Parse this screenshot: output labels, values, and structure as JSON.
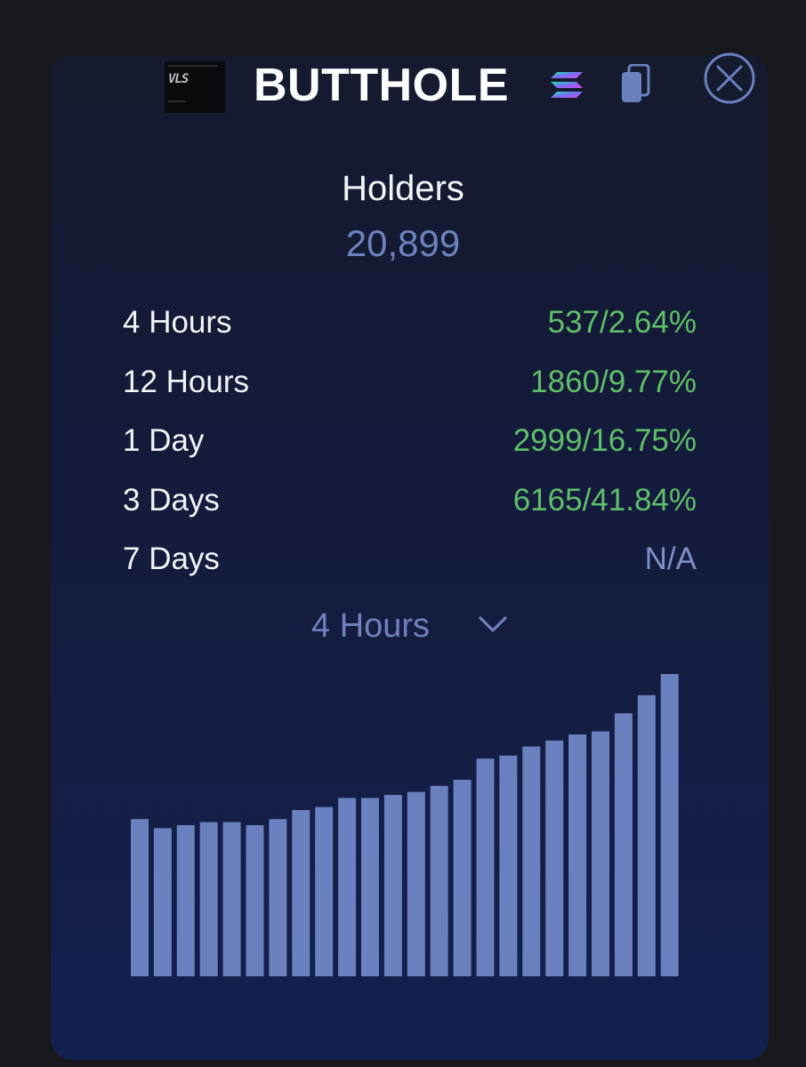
{
  "token": {
    "name": "BUTTHOLE",
    "thumb_alt": "token-image"
  },
  "icons": {
    "chain": "solana-icon",
    "copy": "copy-icon",
    "close": "close-icon",
    "dropdown": "chevron-down-icon"
  },
  "holders": {
    "label": "Holders",
    "count": "20,899"
  },
  "stats": [
    {
      "label": "4 Hours",
      "value": "537/2.64%"
    },
    {
      "label": "12 Hours",
      "value": "1860/9.77%"
    },
    {
      "label": "1 Day",
      "value": "2999/16.75%"
    },
    {
      "label": "3 Days",
      "value": "6165/41.84%"
    },
    {
      "label": "7 Days",
      "value": "N/A"
    }
  ],
  "range_selector": {
    "selected": "4 Hours"
  },
  "colors": {
    "accent": "#6b80bf",
    "positive": "#5fbf6a",
    "bar": "#6b80bf"
  },
  "chart_data": {
    "type": "bar",
    "values": [
      52,
      49,
      50,
      51,
      51,
      50,
      52,
      55,
      56,
      59,
      59,
      60,
      61,
      63,
      65,
      72,
      73,
      76,
      78,
      80,
      81,
      87,
      93,
      100
    ],
    "ylim": [
      0,
      100
    ],
    "grid": false
  }
}
